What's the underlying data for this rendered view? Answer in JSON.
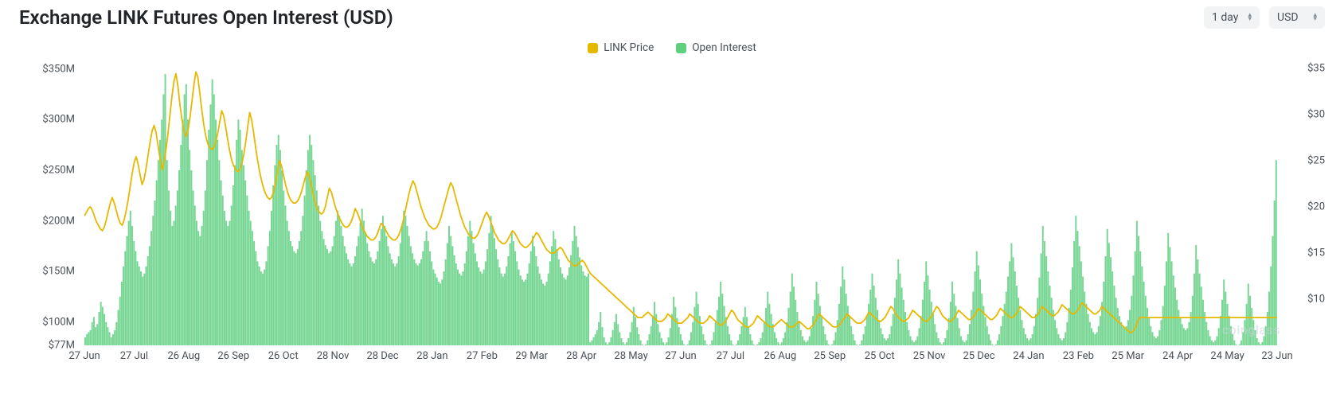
{
  "title": "Exchange LINK Futures Open Interest (USD)",
  "controls": {
    "timeframe": "1 day",
    "currency": "USD"
  },
  "legend": [
    {
      "label": "LINK Price",
      "color": "#e6b800"
    },
    {
      "label": "Open Interest",
      "color": "#5fcf80"
    }
  ],
  "watermark": "coinglass",
  "chart": {
    "type": "combo-bar-line",
    "background_color": "#ffffff",
    "grid_color": "none",
    "left_axis": {
      "label_fontsize": 13,
      "label_color": "#495057",
      "min": 77,
      "max": 360,
      "ticks": [
        {
          "value": 350,
          "label": "$350M"
        },
        {
          "value": 300,
          "label": "$300M"
        },
        {
          "value": 250,
          "label": "$250M"
        },
        {
          "value": 200,
          "label": "$200M"
        },
        {
          "value": 150,
          "label": "$150M"
        },
        {
          "value": 100,
          "label": "$100M"
        },
        {
          "value": 77,
          "label": "$77M"
        }
      ]
    },
    "right_axis": {
      "label_fontsize": 13,
      "label_color": "#495057",
      "min": 5,
      "max": 36,
      "ticks": [
        {
          "value": 35,
          "label": "$35"
        },
        {
          "value": 30,
          "label": "$30"
        },
        {
          "value": 25,
          "label": "$25"
        },
        {
          "value": 20,
          "label": "$20"
        },
        {
          "value": 15,
          "label": "$15"
        },
        {
          "value": 10,
          "label": "$10"
        }
      ]
    },
    "x_axis": {
      "labels": [
        "27 Jun",
        "27 Jul",
        "26 Aug",
        "26 Sep",
        "26 Oct",
        "28 Nov",
        "28 Dec",
        "28 Jan",
        "27 Feb",
        "29 Mar",
        "28 Apr",
        "28 May",
        "27 Jun",
        "27 Jul",
        "26 Aug",
        "25 Sep",
        "25 Oct",
        "25 Nov",
        "25 Dec",
        "24 Jan",
        "23 Feb",
        "25 Mar",
        "24 Apr",
        "24 May",
        "23 Jun"
      ]
    },
    "bars": {
      "color": "#5fcf80",
      "opacity": 0.85,
      "values": [
        85,
        88,
        90,
        92,
        100,
        105,
        95,
        98,
        110,
        120,
        115,
        108,
        100,
        95,
        90,
        85,
        88,
        92,
        100,
        112,
        125,
        140,
        155,
        170,
        185,
        200,
        210,
        195,
        180,
        170,
        160,
        155,
        150,
        145,
        148,
        155,
        165,
        175,
        190,
        205,
        220,
        240,
        260,
        280,
        300,
        325,
        345,
        260,
        230,
        210,
        195,
        200,
        215,
        230,
        250,
        275,
        300,
        325,
        335,
        300,
        270,
        250,
        230,
        215,
        200,
        190,
        185,
        195,
        210,
        230,
        260,
        290,
        315,
        340,
        325,
        300,
        280,
        260,
        240,
        225,
        210,
        200,
        195,
        200,
        215,
        235,
        255,
        280,
        300,
        290,
        270,
        255,
        240,
        225,
        210,
        200,
        190,
        180,
        170,
        160,
        155,
        150,
        148,
        152,
        160,
        175,
        190,
        210,
        235,
        255,
        275,
        285,
        270,
        250,
        230,
        215,
        200,
        190,
        180,
        175,
        170,
        168,
        172,
        180,
        190,
        205,
        225,
        250,
        270,
        285,
        275,
        260,
        245,
        230,
        215,
        200,
        190,
        182,
        176,
        172,
        168,
        170,
        175,
        185,
        200,
        210,
        205,
        195,
        185,
        175,
        168,
        162,
        158,
        155,
        158,
        165,
        175,
        185,
        198,
        212,
        200,
        188,
        178,
        170,
        164,
        160,
        158,
        162,
        170,
        180,
        192,
        205,
        195,
        185,
        175,
        168,
        162,
        158,
        155,
        158,
        165,
        178,
        195,
        210,
        205,
        195,
        185,
        175,
        168,
        162,
        158,
        156,
        158,
        162,
        170,
        180,
        190,
        180,
        170,
        160,
        152,
        148,
        144,
        140,
        138,
        142,
        150,
        162,
        178,
        195,
        185,
        175,
        166,
        158,
        152,
        148,
        146,
        150,
        158,
        170,
        185,
        200,
        190,
        178,
        168,
        160,
        154,
        150,
        148,
        152,
        160,
        172,
        188,
        205,
        195,
        183,
        172,
        162,
        154,
        148,
        145,
        148,
        155,
        165,
        178,
        190,
        180,
        170,
        160,
        152,
        146,
        142,
        140,
        142,
        148,
        158,
        170,
        185,
        175,
        165,
        155,
        148,
        142,
        138,
        136,
        140,
        148,
        160,
        175,
        190,
        182,
        172,
        162,
        154,
        148,
        144,
        142,
        146,
        154,
        166,
        180,
        195,
        185,
        174,
        164,
        156,
        150,
        146,
        145,
        148,
        80,
        82,
        85,
        88,
        92,
        100,
        110,
        95,
        85,
        80,
        78,
        80,
        85,
        92,
        100,
        108,
        98,
        90,
        84,
        80,
        78,
        80,
        84,
        90,
        100,
        115,
        105,
        95,
        88,
        82,
        78,
        76,
        78,
        82,
        88,
        96,
        106,
        120,
        108,
        98,
        90,
        84,
        80,
        78,
        80,
        85,
        94,
        108,
        125,
        115,
        104,
        95,
        88,
        82,
        78,
        76,
        78,
        82,
        90,
        100,
        115,
        130,
        118,
        106,
        96,
        88,
        82,
        78,
        76,
        78,
        82,
        90,
        100,
        112,
        125,
        140,
        128,
        116,
        105,
        96,
        88,
        82,
        78,
        76,
        78,
        82,
        88,
        96,
        105,
        115,
        105,
        96,
        88,
        82,
        78,
        76,
        78,
        80,
        84,
        90,
        100,
        114,
        130,
        118,
        108,
        98,
        90,
        84,
        80,
        78,
        80,
        84,
        90,
        100,
        114,
        130,
        148,
        135,
        122,
        110,
        100,
        92,
        86,
        82,
        80,
        82,
        86,
        94,
        106,
        122,
        140,
        128,
        116,
        105,
        96,
        88,
        82,
        78,
        76,
        78,
        82,
        90,
        102,
        118,
        135,
        155,
        142,
        128,
        116,
        105,
        96,
        88,
        82,
        78,
        76,
        78,
        82,
        88,
        96,
        106,
        118,
        132,
        148,
        136,
        124,
        112,
        102,
        94,
        88,
        84,
        82,
        84,
        88,
        96,
        108,
        124,
        142,
        162,
        148,
        134,
        122,
        110,
        100,
        92,
        86,
        82,
        80,
        82,
        86,
        94,
        106,
        122,
        140,
        160,
        146,
        132,
        120,
        108,
        98,
        90,
        84,
        80,
        78,
        80,
        84,
        92,
        104,
        120,
        140,
        128,
        116,
        104,
        94,
        86,
        82,
        80,
        82,
        88,
        98,
        112,
        130,
        150,
        170,
        156,
        142,
        128,
        116,
        105,
        96,
        88,
        82,
        78,
        76,
        78,
        82,
        88,
        96,
        106,
        118,
        130,
        145,
        160,
        178,
        164,
        150,
        136,
        124,
        112,
        102,
        94,
        88,
        84,
        82,
        84,
        88,
        96,
        108,
        124,
        144,
        168,
        195,
        180,
        165,
        150,
        136,
        124,
        112,
        102,
        94,
        88,
        84,
        82,
        84,
        90,
        100,
        114,
        132,
        154,
        180,
        205,
        190,
        175,
        160,
        145,
        130,
        118,
        108,
        100,
        94,
        90,
        88,
        90,
        96,
        106,
        120,
        140,
        165,
        192,
        178,
        164,
        150,
        136,
        124,
        114,
        106,
        100,
        96,
        94,
        96,
        102,
        112,
        126,
        146,
        170,
        200,
        185,
        170,
        155,
        140,
        126,
        114,
        104,
        96,
        90,
        86,
        84,
        86,
        92,
        102,
        116,
        136,
        160,
        188,
        174,
        160,
        146,
        134,
        122,
        112,
        104,
        98,
        94,
        92,
        94,
        100,
        110,
        126,
        148,
        176,
        162,
        148,
        135,
        122,
        110,
        100,
        92,
        86,
        82,
        80,
        82,
        86,
        94,
        106,
        122,
        142,
        130,
        118,
        106,
        96,
        88,
        82,
        78,
        76,
        78,
        82,
        90,
        102,
        118,
        138,
        126,
        114,
        102,
        92,
        84,
        80,
        78,
        80,
        86,
        96,
        110,
        130,
        155,
        185,
        220,
        260
      ]
    },
    "line": {
      "color": "#e6b800",
      "width": 1.8,
      "values": [
        19,
        19.4,
        19.8,
        20,
        19.6,
        19,
        18.4,
        18,
        17.6,
        17.4,
        17.8,
        18.6,
        19.5,
        20.4,
        21,
        20.4,
        19.6,
        18.8,
        18.2,
        18,
        18.6,
        19.6,
        20.8,
        22.2,
        23.6,
        24.8,
        25.4,
        24.6,
        23.4,
        22.4,
        23,
        24.2,
        25.6,
        27,
        28.2,
        28.8,
        28,
        26.6,
        25.2,
        24,
        24.8,
        26.2,
        28,
        30,
        32,
        33.6,
        34.4,
        33,
        31,
        29.4,
        28.2,
        27.6,
        28.2,
        29.6,
        31.4,
        33.2,
        34.6,
        34,
        32.2,
        30.4,
        28.8,
        27.6,
        26.8,
        26.4,
        26.2,
        26.4,
        27,
        28,
        29.2,
        30.4,
        29.8,
        28.6,
        27.2,
        26,
        25,
        24.4,
        24,
        23.8,
        24,
        24.6,
        25.6,
        27,
        28.6,
        30.2,
        29.4,
        28,
        26.4,
        25,
        23.8,
        22.8,
        22,
        21.4,
        21,
        20.8,
        21,
        21.6,
        22.6,
        23.8,
        25,
        24.4,
        23.4,
        22.4,
        21.6,
        21,
        20.6,
        20.4,
        20.4,
        20.6,
        21,
        21.6,
        22.4,
        23.2,
        23.8,
        23.2,
        22.2,
        21.2,
        20.4,
        19.8,
        19.4,
        19.2,
        19.4,
        20,
        21,
        22,
        21.6,
        20.8,
        20,
        19.4,
        18.8,
        18.4,
        18,
        17.8,
        17.8,
        18,
        18.4,
        19,
        19.8,
        19.4,
        18.8,
        18.2,
        17.6,
        17.2,
        16.8,
        16.6,
        16.4,
        16.4,
        16.6,
        17,
        17.6,
        18.2,
        18,
        17.6,
        17.2,
        16.8,
        16.6,
        16.4,
        16.4,
        16.6,
        17,
        17.6,
        18.4,
        19.4,
        20.4,
        21.4,
        22.2,
        22.8,
        22.4,
        21.6,
        20.8,
        20,
        19.4,
        18.8,
        18.4,
        18,
        17.8,
        17.6,
        17.6,
        17.8,
        18.2,
        18.8,
        19.6,
        20.4,
        21.2,
        22,
        22.6,
        22.2,
        21.4,
        20.6,
        19.8,
        19,
        18.4,
        17.8,
        17.4,
        17,
        16.8,
        16.6,
        16.6,
        16.8,
        17.2,
        17.8,
        18.4,
        19,
        19.4,
        19,
        18.4,
        17.8,
        17.2,
        16.8,
        16.4,
        16.2,
        16,
        16,
        16.2,
        16.6,
        17,
        17.4,
        17.2,
        16.8,
        16.4,
        16,
        15.8,
        15.6,
        15.6,
        15.8,
        16,
        16.4,
        16.8,
        17.2,
        17,
        16.6,
        16.2,
        15.8,
        15.4,
        15.2,
        15,
        15,
        15,
        15.2,
        15.4,
        15.6,
        15.4,
        15,
        14.6,
        14.2,
        14,
        13.8,
        13.6,
        13.6,
        13.8,
        14,
        14.2,
        14,
        13.6,
        13.2,
        12.8,
        12.6,
        12.4,
        12.2,
        12,
        11.8,
        11.6,
        11.4,
        11.2,
        11,
        10.8,
        10.6,
        10.4,
        10.2,
        10,
        9.8,
        9.6,
        9.4,
        9.2,
        9,
        8.8,
        8.6,
        8.4,
        8.2,
        8,
        8,
        8,
        8.2,
        8.4,
        8.6,
        8.4,
        8.2,
        8,
        7.8,
        7.6,
        7.6,
        7.6,
        7.8,
        8,
        8.4,
        8.2,
        8,
        7.8,
        7.6,
        7.4,
        7.4,
        7.4,
        7.6,
        7.8,
        8,
        8.4,
        8.2,
        8,
        7.8,
        7.6,
        7.4,
        7.4,
        7.4,
        7.6,
        7.8,
        8.2,
        8,
        7.8,
        7.6,
        7.4,
        7.2,
        7.2,
        7.4,
        7.6,
        8,
        8.4,
        8.8,
        8.6,
        8.2,
        7.8,
        7.6,
        7.4,
        7.2,
        7,
        7,
        7,
        7.2,
        7.4,
        7.8,
        8.2,
        8,
        7.8,
        7.6,
        7.4,
        7.2,
        7,
        7,
        7,
        7.2,
        7.4,
        7.6,
        7.8,
        7.6,
        7.4,
        7.2,
        7,
        7,
        7,
        7.2,
        7.4,
        7.6,
        7.4,
        7.2,
        7,
        6.8,
        6.8,
        7,
        7.2,
        7.6,
        8,
        8.4,
        8.2,
        8,
        7.8,
        7.6,
        7.4,
        7.2,
        7,
        7,
        7,
        7.2,
        7.4,
        7.8,
        8,
        8.4,
        8.2,
        8,
        7.8,
        7.6,
        7.4,
        7.4,
        7.4,
        7.6,
        7.8,
        8.2,
        8.6,
        8.4,
        8.2,
        8,
        7.8,
        7.6,
        7.6,
        7.8,
        8,
        8.4,
        8.8,
        9.2,
        9,
        8.6,
        8.2,
        8,
        7.8,
        7.6,
        7.6,
        7.8,
        8,
        8.4,
        8.8,
        8.6,
        8.4,
        8.2,
        8,
        7.8,
        7.6,
        7.6,
        7.8,
        8,
        8.4,
        8.8,
        9.2,
        9,
        8.6,
        8.2,
        8,
        7.8,
        7.6,
        7.6,
        7.8,
        8,
        8.4,
        8.8,
        8.6,
        8.4,
        8.2,
        8,
        7.8,
        7.8,
        8,
        8.2,
        8.6,
        9,
        8.8,
        8.6,
        8.4,
        8.2,
        8,
        7.8,
        7.8,
        8,
        8.2,
        8.6,
        9,
        8.8,
        8.6,
        8.4,
        8.2,
        8,
        8,
        8.2,
        8.4,
        8.8,
        9.2,
        9,
        8.8,
        8.6,
        8.4,
        8.2,
        8,
        8,
        8.2,
        8.4,
        8.8,
        9.2,
        9,
        8.8,
        8.6,
        8.4,
        8.2,
        8.2,
        8.4,
        8.6,
        9,
        9.4,
        9.2,
        9,
        8.8,
        8.6,
        8.4,
        8.4,
        8.6,
        8.8,
        9.2,
        9.6,
        9.4,
        9.2,
        9,
        8.8,
        8.6,
        8.4,
        8.4,
        8.6,
        8.8,
        9.2,
        9,
        8.8,
        8.6,
        8.4,
        8.2,
        8,
        7.8,
        7.6,
        7.4,
        7.2,
        7,
        6.8,
        6.6,
        6.4,
        6.4,
        6.6,
        7,
        7.6,
        8,
        8,
        8,
        8,
        8,
        8,
        8,
        8,
        8,
        8,
        8,
        8,
        8,
        8,
        8,
        8,
        8,
        8,
        8,
        8,
        8,
        8,
        8,
        8,
        8,
        8,
        8,
        8,
        8,
        8,
        8,
        8,
        8,
        8,
        8,
        8,
        8,
        8,
        8,
        8,
        8,
        8,
        8,
        8,
        8,
        8,
        8,
        8,
        8,
        8,
        8,
        8,
        8,
        8,
        8,
        8,
        8,
        8,
        8,
        8,
        8,
        8,
        8,
        8,
        8,
        8,
        8,
        8,
        8,
        8
      ]
    }
  }
}
